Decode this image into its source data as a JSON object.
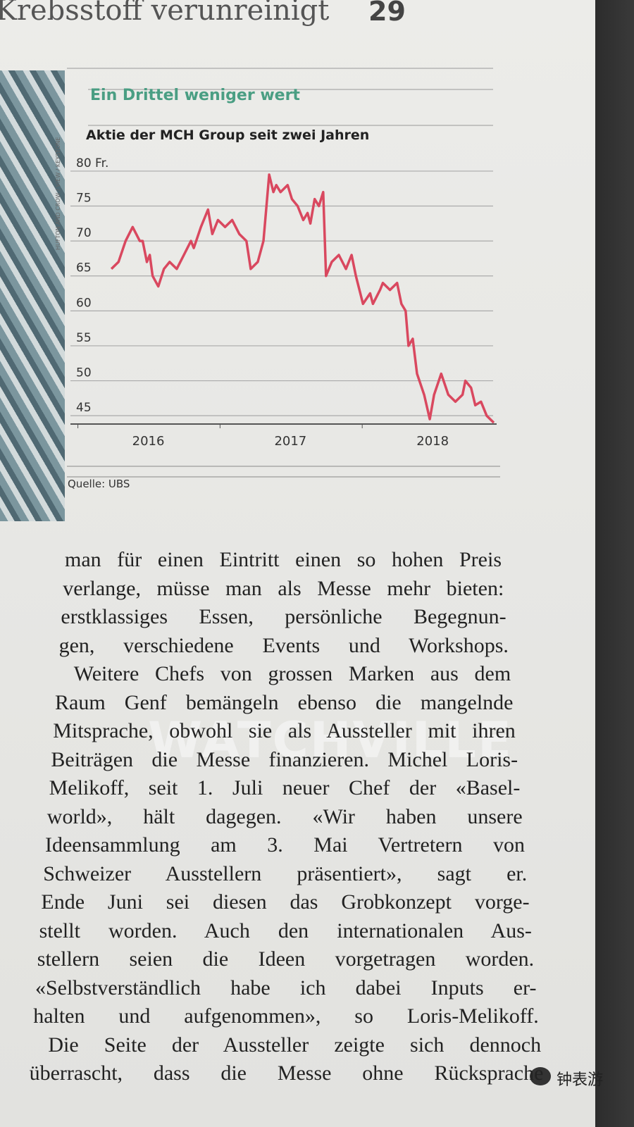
{
  "header": {
    "headline": "Krebsstoff verunreinigt",
    "page_number": "29"
  },
  "photo_credit": "HUFTON AND CROW / VIEW / KEYSTONE",
  "chart_data": {
    "type": "line",
    "title": "Ein Drittel weniger wert",
    "subtitle": "Aktie der MCH Group seit zwei Jahren",
    "source": "Quelle: UBS",
    "color": "#d9485f",
    "x": [
      2016.24,
      2016.29,
      2016.34,
      2016.39,
      2016.44,
      2016.46,
      2016.49,
      2016.51,
      2016.53,
      2016.57,
      2016.61,
      2016.65,
      2016.7,
      2016.75,
      2016.8,
      2016.82,
      2016.87,
      2016.92,
      2016.95,
      2016.99,
      2017.04,
      2017.09,
      2017.14,
      2017.19,
      2017.22,
      2017.27,
      2017.31,
      2017.35,
      2017.38,
      2017.4,
      2017.43,
      2017.48,
      2017.51,
      2017.55,
      2017.59,
      2017.62,
      2017.64,
      2017.67,
      2017.7,
      2017.73,
      2017.75,
      2017.79,
      2017.84,
      2017.89,
      2017.93,
      2017.96,
      2018.01,
      2018.06,
      2018.08,
      2018.13,
      2018.15,
      2018.2,
      2018.25,
      2018.28,
      2018.31,
      2018.33,
      2018.36,
      2018.39,
      2018.44,
      2018.48,
      2018.51,
      2018.56,
      2018.61,
      2018.66,
      2018.71,
      2018.73,
      2018.77,
      2018.8,
      2018.84,
      2018.88,
      2018.93
    ],
    "values": [
      66,
      67,
      70,
      72,
      70,
      70,
      67,
      68,
      65,
      63.5,
      66,
      67,
      66,
      68,
      70,
      69,
      72,
      74.5,
      71,
      73,
      72,
      73,
      71,
      70,
      66,
      67,
      70,
      79.5,
      77,
      78,
      77,
      78,
      76,
      75,
      73,
      74,
      72.5,
      76,
      75,
      77,
      65,
      67,
      68,
      66,
      68,
      65,
      61,
      62.5,
      61,
      63,
      64,
      63,
      64,
      61,
      60,
      55,
      56,
      51,
      48,
      44.5,
      48,
      51,
      48,
      47,
      48,
      50,
      49,
      46.5,
      47,
      45,
      44
    ],
    "xlim": [
      2016.2,
      2018.95
    ],
    "ylim": [
      43,
      81
    ],
    "xticks": [
      {
        "value": 2016.5,
        "label": "2016"
      },
      {
        "value": 2017.5,
        "label": "2017"
      },
      {
        "value": 2018.5,
        "label": "2018"
      }
    ],
    "yticks": [
      45,
      50,
      55,
      60,
      65,
      70,
      75,
      {
        "value": 80,
        "label": "80 Fr."
      }
    ],
    "grid": true
  },
  "article": {
    "lines": [
      "man für einen Eintritt einen so hohen Preis",
      "verlange, müsse man als Messe mehr bieten:",
      "erstklassiges Essen, persönliche Begegnun-",
      "gen, verschiedene Events und Workshops.",
      "Weitere Chefs von grossen Marken aus dem",
      "Raum Genf bemängeln ebenso die mangelnde",
      "Mitsprache, obwohl sie als Aussteller mit ihren",
      "Beiträgen die Messe finanzieren. Michel Loris-",
      "Melikoff, seit 1. Juli neuer Chef der «Basel-",
      "world», hält dagegen. «Wir haben unsere",
      "Ideensammlung am 3. Mai Vertretern von",
      "Schweizer Ausstellern präsentiert», sagt er.",
      "Ende Juni sei diesen das Grobkonzept vorge-",
      "stellt worden. Auch den internationalen Aus-",
      "stellern seien die Ideen vorgetragen worden.",
      "«Selbstverständlich habe ich dabei Inputs er-",
      "halten und aufgenommen», so Loris-Melikoff.",
      "Die Seite der Aussteller zeigte sich dennoch",
      "überrascht, dass die Messe ohne Rücksprache"
    ],
    "indented": [
      4,
      17
    ]
  },
  "watermark": {
    "latin": "WATCHVILLE",
    "brand": "钟表游"
  }
}
